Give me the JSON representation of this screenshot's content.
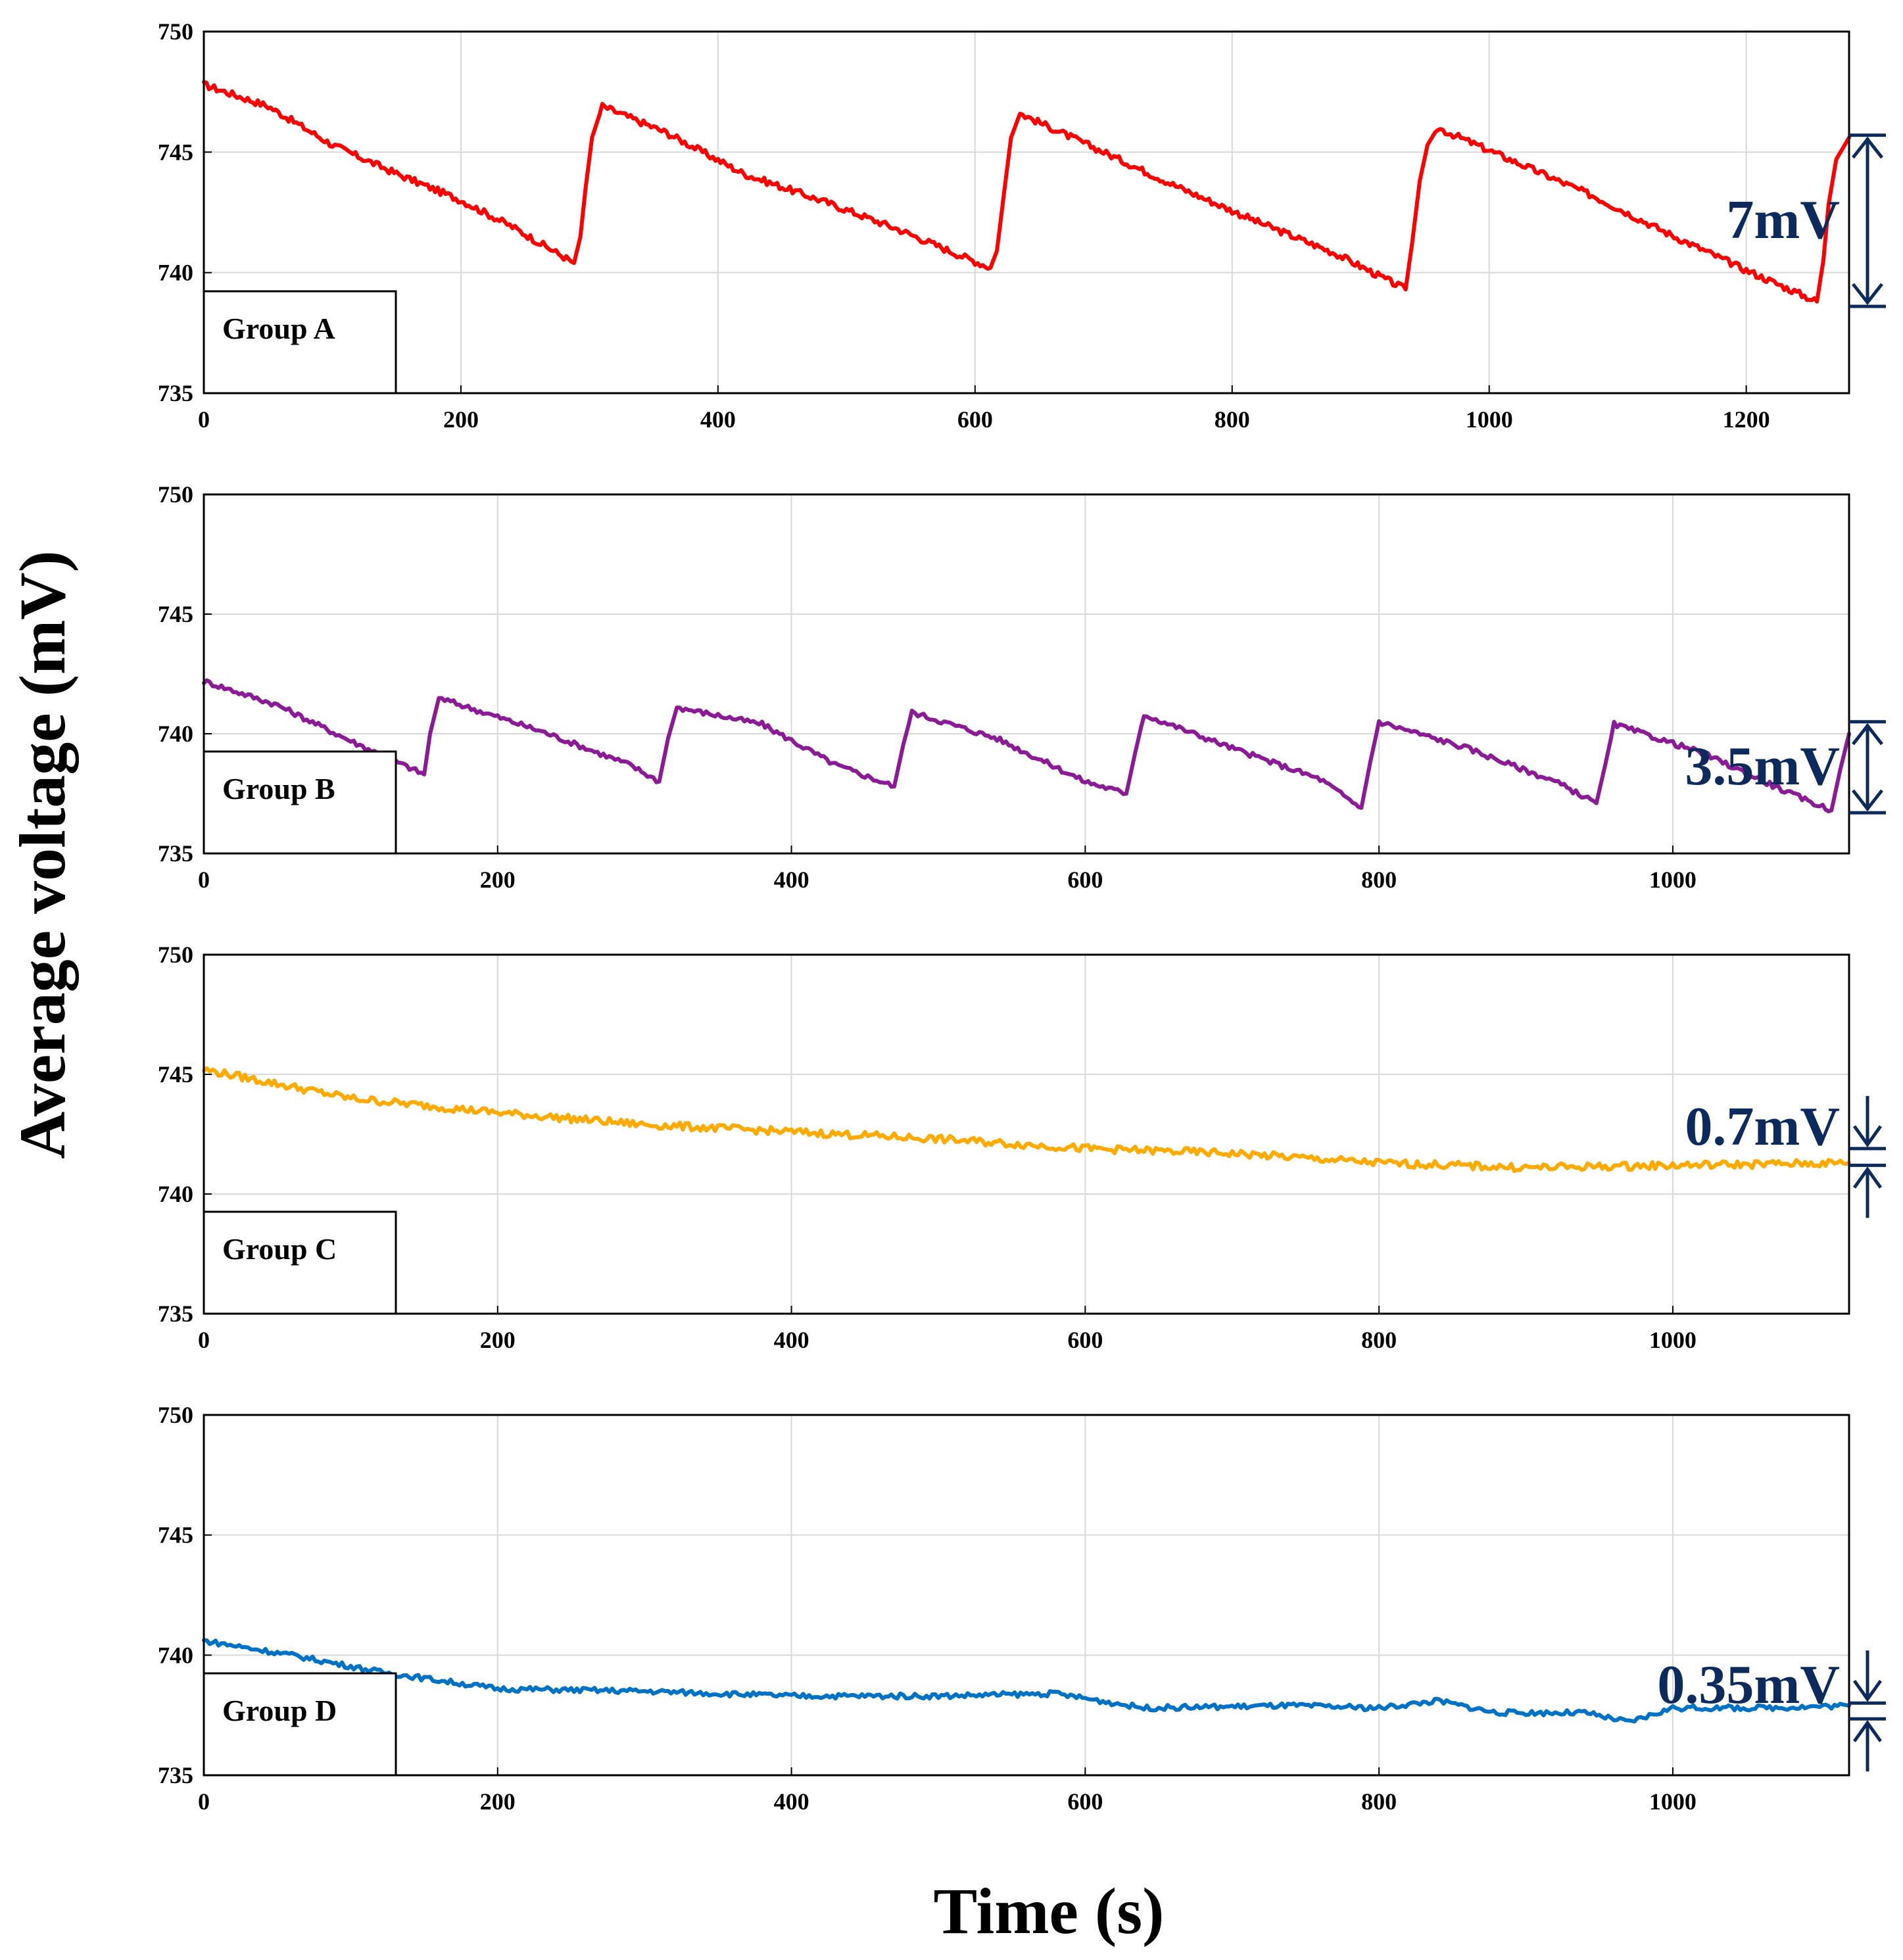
{
  "figure": {
    "ylabel": "Average voltage (mV)",
    "xlabel": "Time (s)"
  },
  "chart_data": [
    {
      "type": "line",
      "title": "Group A",
      "group_label": "Group A",
      "xlabel": "Time (s)",
      "ylabel": "Average voltage (mV)",
      "xlim": [
        0,
        1280
      ],
      "ylim": [
        735,
        750
      ],
      "xticks": [
        0,
        200,
        400,
        600,
        800,
        1000,
        1200
      ],
      "yticks": [
        735,
        740,
        745,
        750
      ],
      "grid": true,
      "color": "#ff0000",
      "amplitude_label": "7mV",
      "amplitude_range": [
        738.6,
        745.7
      ],
      "series": [
        {
          "name": "Group A",
          "points": [
            [
              0,
              747.8
            ],
            [
              50,
              746.9
            ],
            [
              100,
              745.3
            ],
            [
              150,
              744.1
            ],
            [
              200,
              743.0
            ],
            [
              240,
              741.9
            ],
            [
              288,
              740.4
            ],
            [
              293,
              741.5
            ],
            [
              297,
              743.5
            ],
            [
              302,
              745.6
            ],
            [
              310,
              746.9
            ],
            [
              360,
              745.8
            ],
            [
              420,
              744.1
            ],
            [
              480,
              743.0
            ],
            [
              540,
              741.8
            ],
            [
              580,
              740.9
            ],
            [
              612,
              740.2
            ],
            [
              617,
              740.9
            ],
            [
              623,
              743.5
            ],
            [
              628,
              745.6
            ],
            [
              635,
              746.6
            ],
            [
              700,
              745.0
            ],
            [
              760,
              743.5
            ],
            [
              820,
              742.1
            ],
            [
              880,
              740.8
            ],
            [
              935,
              739.3
            ],
            [
              940,
              741.2
            ],
            [
              946,
              743.8
            ],
            [
              952,
              745.3
            ],
            [
              960,
              746.0
            ],
            [
              1020,
              744.6
            ],
            [
              1080,
              743.2
            ],
            [
              1140,
              741.6
            ],
            [
              1200,
              740.1
            ],
            [
              1255,
              738.8
            ],
            [
              1260,
              740.5
            ],
            [
              1264,
              742.8
            ],
            [
              1270,
              744.7
            ],
            [
              1280,
              745.6
            ]
          ]
        }
      ]
    },
    {
      "type": "line",
      "title": "Group B",
      "group_label": "Group B",
      "xlabel": "Time (s)",
      "ylabel": "Average voltage (mV)",
      "xlim": [
        0,
        1120
      ],
      "ylim": [
        735,
        750
      ],
      "xticks": [
        0,
        200,
        400,
        600,
        800,
        1000
      ],
      "yticks": [
        735,
        740,
        745,
        750
      ],
      "grid": true,
      "color": "#8b1a96",
      "amplitude_label": "3.5mV",
      "amplitude_range": [
        736.7,
        740.5
      ],
      "series": [
        {
          "name": "Group B",
          "points": [
            [
              0,
              742.2
            ],
            [
              50,
              741.2
            ],
            [
              100,
              739.7
            ],
            [
              150,
              738.3
            ],
            [
              154,
              740.0
            ],
            [
              160,
              741.5
            ],
            [
              230,
              740.1
            ],
            [
              290,
              738.7
            ],
            [
              310,
              738.0
            ],
            [
              316,
              739.8
            ],
            [
              322,
              741.1
            ],
            [
              380,
              740.4
            ],
            [
              430,
              738.7
            ],
            [
              470,
              737.8
            ],
            [
              476,
              739.5
            ],
            [
              482,
              740.9
            ],
            [
              540,
              739.8
            ],
            [
              600,
              738.0
            ],
            [
              628,
              737.5
            ],
            [
              634,
              739.2
            ],
            [
              640,
              740.8
            ],
            [
              700,
              739.4
            ],
            [
              760,
              738.1
            ],
            [
              788,
              736.9
            ],
            [
              794,
              738.8
            ],
            [
              800,
              740.5
            ],
            [
              860,
              739.4
            ],
            [
              920,
              738.0
            ],
            [
              948,
              737.1
            ],
            [
              954,
              738.7
            ],
            [
              960,
              740.4
            ],
            [
              1020,
              739.2
            ],
            [
              1080,
              737.5
            ],
            [
              1108,
              736.8
            ],
            [
              1114,
              738.5
            ],
            [
              1120,
              740.0
            ]
          ]
        }
      ]
    },
    {
      "type": "line",
      "title": "Group C",
      "group_label": "Group C",
      "xlabel": "Time (s)",
      "ylabel": "Average voltage (mV)",
      "xlim": [
        0,
        1120
      ],
      "ylim": [
        735,
        750
      ],
      "xticks": [
        0,
        200,
        400,
        600,
        800,
        1000
      ],
      "yticks": [
        735,
        740,
        745,
        750
      ],
      "grid": true,
      "color": "#ffaa00",
      "amplitude_label": "0.7mV",
      "amplitude_range": [
        741.2,
        741.9
      ],
      "series": [
        {
          "name": "Group C",
          "points": [
            [
              0,
              745.2
            ],
            [
              100,
              744.0
            ],
            [
              200,
              743.4
            ],
            [
              300,
              742.9
            ],
            [
              400,
              742.6
            ],
            [
              500,
              742.3
            ],
            [
              600,
              741.9
            ],
            [
              700,
              741.7
            ],
            [
              800,
              741.3
            ],
            [
              900,
              741.1
            ],
            [
              1000,
              741.2
            ],
            [
              1120,
              741.3
            ]
          ]
        }
      ]
    },
    {
      "type": "line",
      "title": "Group D",
      "group_label": "Group D",
      "xlabel": "Time (s)",
      "ylabel": "Average voltage (mV)",
      "xlim": [
        0,
        1120
      ],
      "ylim": [
        735,
        750
      ],
      "xticks": [
        0,
        200,
        400,
        600,
        800,
        1000
      ],
      "yticks": [
        735,
        740,
        745,
        750
      ],
      "grid": true,
      "color": "#0072c6",
      "amplitude_label": "0.35mV",
      "amplitude_range": [
        737.5,
        737.85
      ],
      "series": [
        {
          "name": "Group D",
          "points": [
            [
              0,
              740.6
            ],
            [
              60,
              740.0
            ],
            [
              120,
              739.3
            ],
            [
              200,
              738.6
            ],
            [
              300,
              738.5
            ],
            [
              400,
              738.3
            ],
            [
              500,
              738.3
            ],
            [
              580,
              738.4
            ],
            [
              640,
              737.8
            ],
            [
              740,
              737.9
            ],
            [
              800,
              737.8
            ],
            [
              840,
              738.1
            ],
            [
              880,
              737.6
            ],
            [
              940,
              737.6
            ],
            [
              970,
              737.2
            ],
            [
              1000,
              737.8
            ],
            [
              1060,
              737.8
            ],
            [
              1120,
              737.9
            ]
          ]
        }
      ]
    }
  ]
}
